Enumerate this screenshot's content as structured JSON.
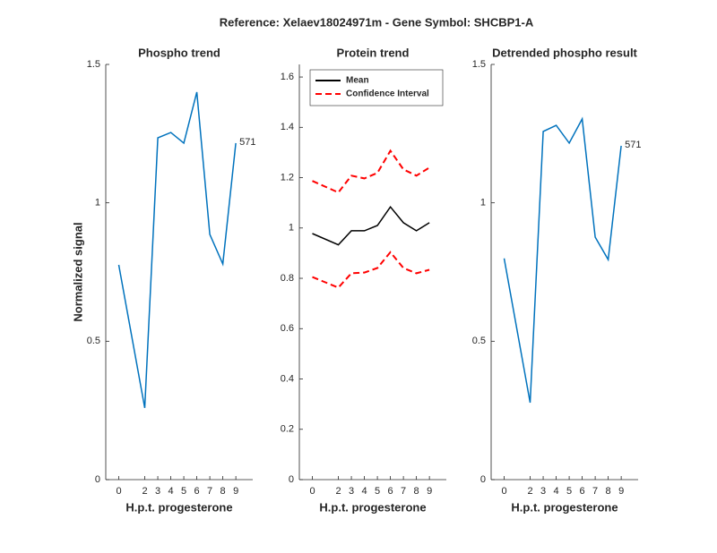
{
  "title": "Reference:  Xelaev18024971m - Gene Symbol:  SHCBP1-A",
  "chart_data": [
    {
      "type": "line",
      "title": "Phospho trend",
      "xlabel": "H.p.t. progesterone",
      "ylabel": "Normalized signal",
      "x": [
        0,
        2,
        3,
        4,
        5,
        6,
        7,
        8,
        9
      ],
      "series": [
        {
          "color": "#0072bd",
          "values": [
            0.776,
            0.259,
            1.235,
            1.254,
            1.216,
            1.4,
            0.886,
            0.779,
            1.216
          ]
        }
      ],
      "annotation": "571",
      "xlim": [
        -1,
        10.3
      ],
      "xticks": [
        0,
        2,
        3,
        4,
        5,
        6,
        7,
        8,
        9
      ],
      "ylim": [
        0,
        1.5
      ],
      "yticks": [
        0,
        0.5,
        1,
        1.5
      ]
    },
    {
      "type": "line",
      "title": "Protein trend",
      "xlabel": "H.p.t. progesterone",
      "x": [
        0,
        2,
        3,
        4,
        5,
        6,
        7,
        8,
        9
      ],
      "series": [
        {
          "name": "Mean",
          "color": "#000000",
          "dash": false,
          "values": [
            0.978,
            0.933,
            0.989,
            0.989,
            1.01,
            1.084,
            1.021,
            0.989,
            1.021
          ]
        },
        {
          "name": "Confidence Interval",
          "color": "#ff0000",
          "dash": true,
          "values": [
            1.187,
            1.141,
            1.208,
            1.197,
            1.219,
            1.307,
            1.233,
            1.208,
            1.24
          ],
          "lower": [
            0.805,
            0.763,
            0.82,
            0.823,
            0.841,
            0.904,
            0.841,
            0.82,
            0.834
          ]
        }
      ],
      "legend": "northwest",
      "xlim": [
        -1,
        10.3
      ],
      "xticks": [
        0,
        2,
        3,
        4,
        5,
        6,
        7,
        8,
        9
      ],
      "ylim": [
        0,
        1.65
      ],
      "yticks": [
        0,
        0.2,
        0.4,
        0.6,
        0.8,
        1,
        1.2,
        1.4,
        1.6
      ]
    },
    {
      "type": "line",
      "title": "Detrended phospho result",
      "xlabel": "H.p.t. progesterone",
      "x": [
        0,
        2,
        3,
        4,
        5,
        6,
        7,
        8,
        9
      ],
      "series": [
        {
          "color": "#0072bd",
          "values": [
            0.799,
            0.278,
            1.258,
            1.28,
            1.216,
            1.303,
            0.876,
            0.795,
            1.206
          ]
        }
      ],
      "annotation": "571",
      "xlim": [
        -1,
        10.3
      ],
      "xticks": [
        0,
        2,
        3,
        4,
        5,
        6,
        7,
        8,
        9
      ],
      "ylim": [
        0,
        1.5
      ],
      "yticks": [
        0,
        0.5,
        1,
        1.5
      ]
    }
  ]
}
